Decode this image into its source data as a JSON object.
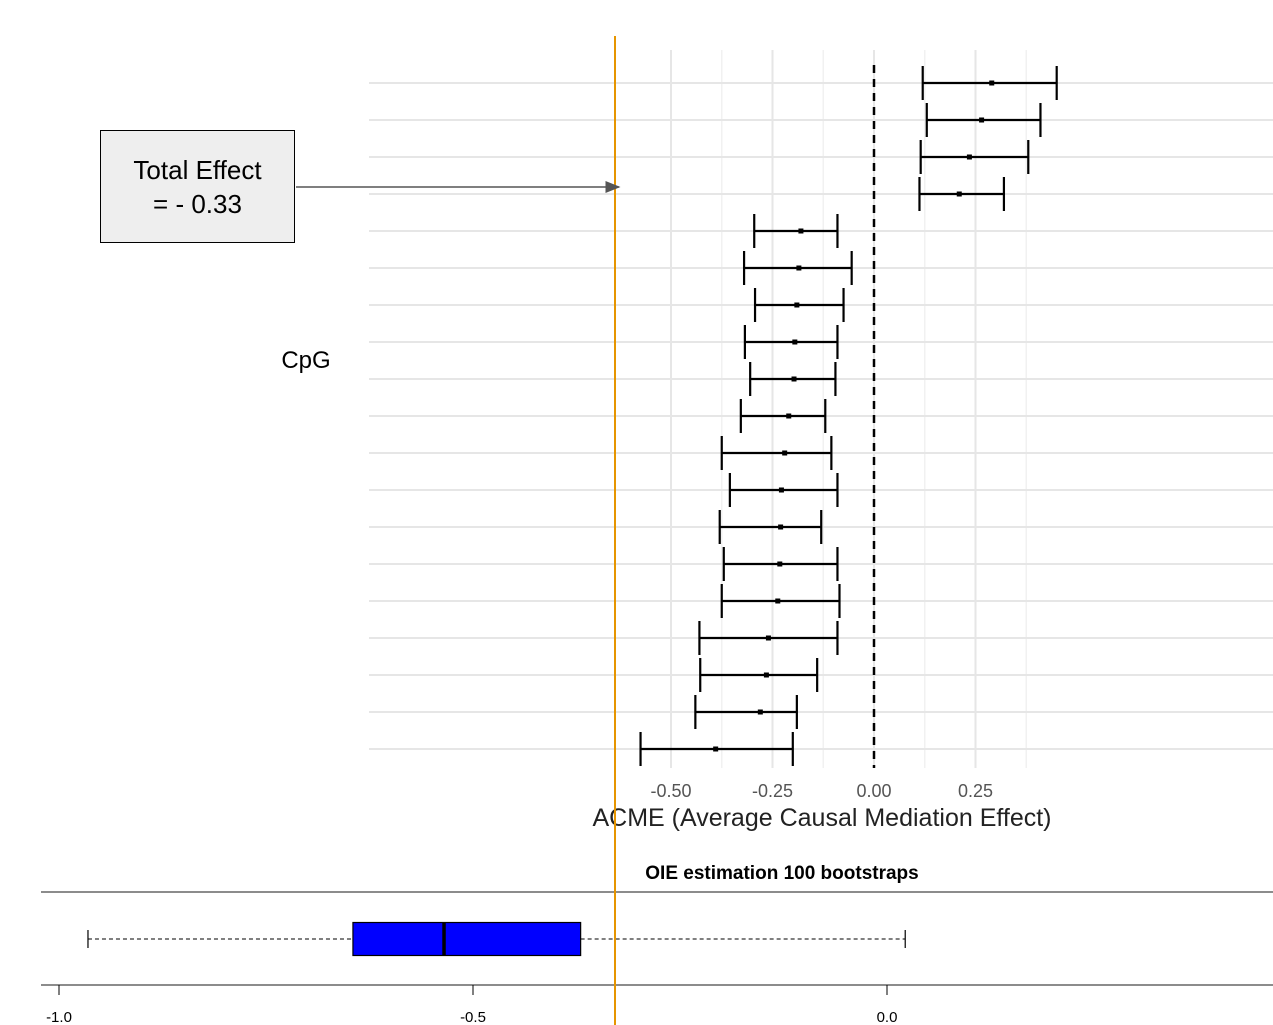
{
  "annotation": {
    "line1": "Total Effect",
    "line2": "= - 0.33",
    "value": -0.33
  },
  "chart_data": [
    {
      "type": "forest",
      "title": "",
      "xlabel": "ACME (Average Causal Mediation Effect)",
      "ylabel": "CpG",
      "xlim": [
        -0.63,
        0.63
      ],
      "xticks": [
        -0.5,
        -0.25,
        0.0,
        0.25
      ],
      "xtick_labels": [
        "-0.50",
        "-0.25",
        "0.00",
        "0.25"
      ],
      "reference_line": 0.0,
      "total_effect_line": -0.33,
      "grid": true,
      "rows": [
        {
          "estimate": 0.29,
          "lower": 0.12,
          "upper": 0.45
        },
        {
          "estimate": 0.265,
          "lower": 0.13,
          "upper": 0.41
        },
        {
          "estimate": 0.235,
          "lower": 0.115,
          "upper": 0.38
        },
        {
          "estimate": 0.21,
          "lower": 0.112,
          "upper": 0.32
        },
        {
          "estimate": -0.18,
          "lower": -0.295,
          "upper": -0.09
        },
        {
          "estimate": -0.185,
          "lower": -0.32,
          "upper": -0.055
        },
        {
          "estimate": -0.19,
          "lower": -0.293,
          "upper": -0.075
        },
        {
          "estimate": -0.195,
          "lower": -0.318,
          "upper": -0.09
        },
        {
          "estimate": -0.197,
          "lower": -0.305,
          "upper": -0.095
        },
        {
          "estimate": -0.21,
          "lower": -0.328,
          "upper": -0.12
        },
        {
          "estimate": -0.22,
          "lower": -0.375,
          "upper": -0.105
        },
        {
          "estimate": -0.228,
          "lower": -0.355,
          "upper": -0.09
        },
        {
          "estimate": -0.23,
          "lower": -0.38,
          "upper": -0.13
        },
        {
          "estimate": -0.232,
          "lower": -0.37,
          "upper": -0.09
        },
        {
          "estimate": -0.237,
          "lower": -0.375,
          "upper": -0.085
        },
        {
          "estimate": -0.26,
          "lower": -0.43,
          "upper": -0.09
        },
        {
          "estimate": -0.265,
          "lower": -0.428,
          "upper": -0.14
        },
        {
          "estimate": -0.28,
          "lower": -0.44,
          "upper": -0.19
        },
        {
          "estimate": -0.39,
          "lower": -0.575,
          "upper": -0.2
        }
      ]
    },
    {
      "type": "boxplot",
      "title": "OIE estimation 100 bootstraps",
      "orientation": "horizontal",
      "xlim": [
        -1.05,
        0.47
      ],
      "xticks": [
        -1.0,
        -0.5,
        0.0
      ],
      "xtick_labels": [
        "-1.0",
        "-0.5",
        "0.0"
      ],
      "whisker_low": -0.965,
      "q1": -0.645,
      "median": -0.535,
      "q3": -0.37,
      "whisker_high": 0.022,
      "box_color": "#0000ff"
    }
  ],
  "colors": {
    "grid": "#e6e6e6",
    "bars": "#000000",
    "zero_line": "#000000",
    "total_effect_line": "#e69500",
    "arrow": "#555555",
    "annotation_box": "#eeeeee",
    "boxplot_fill": "#0000ff"
  }
}
